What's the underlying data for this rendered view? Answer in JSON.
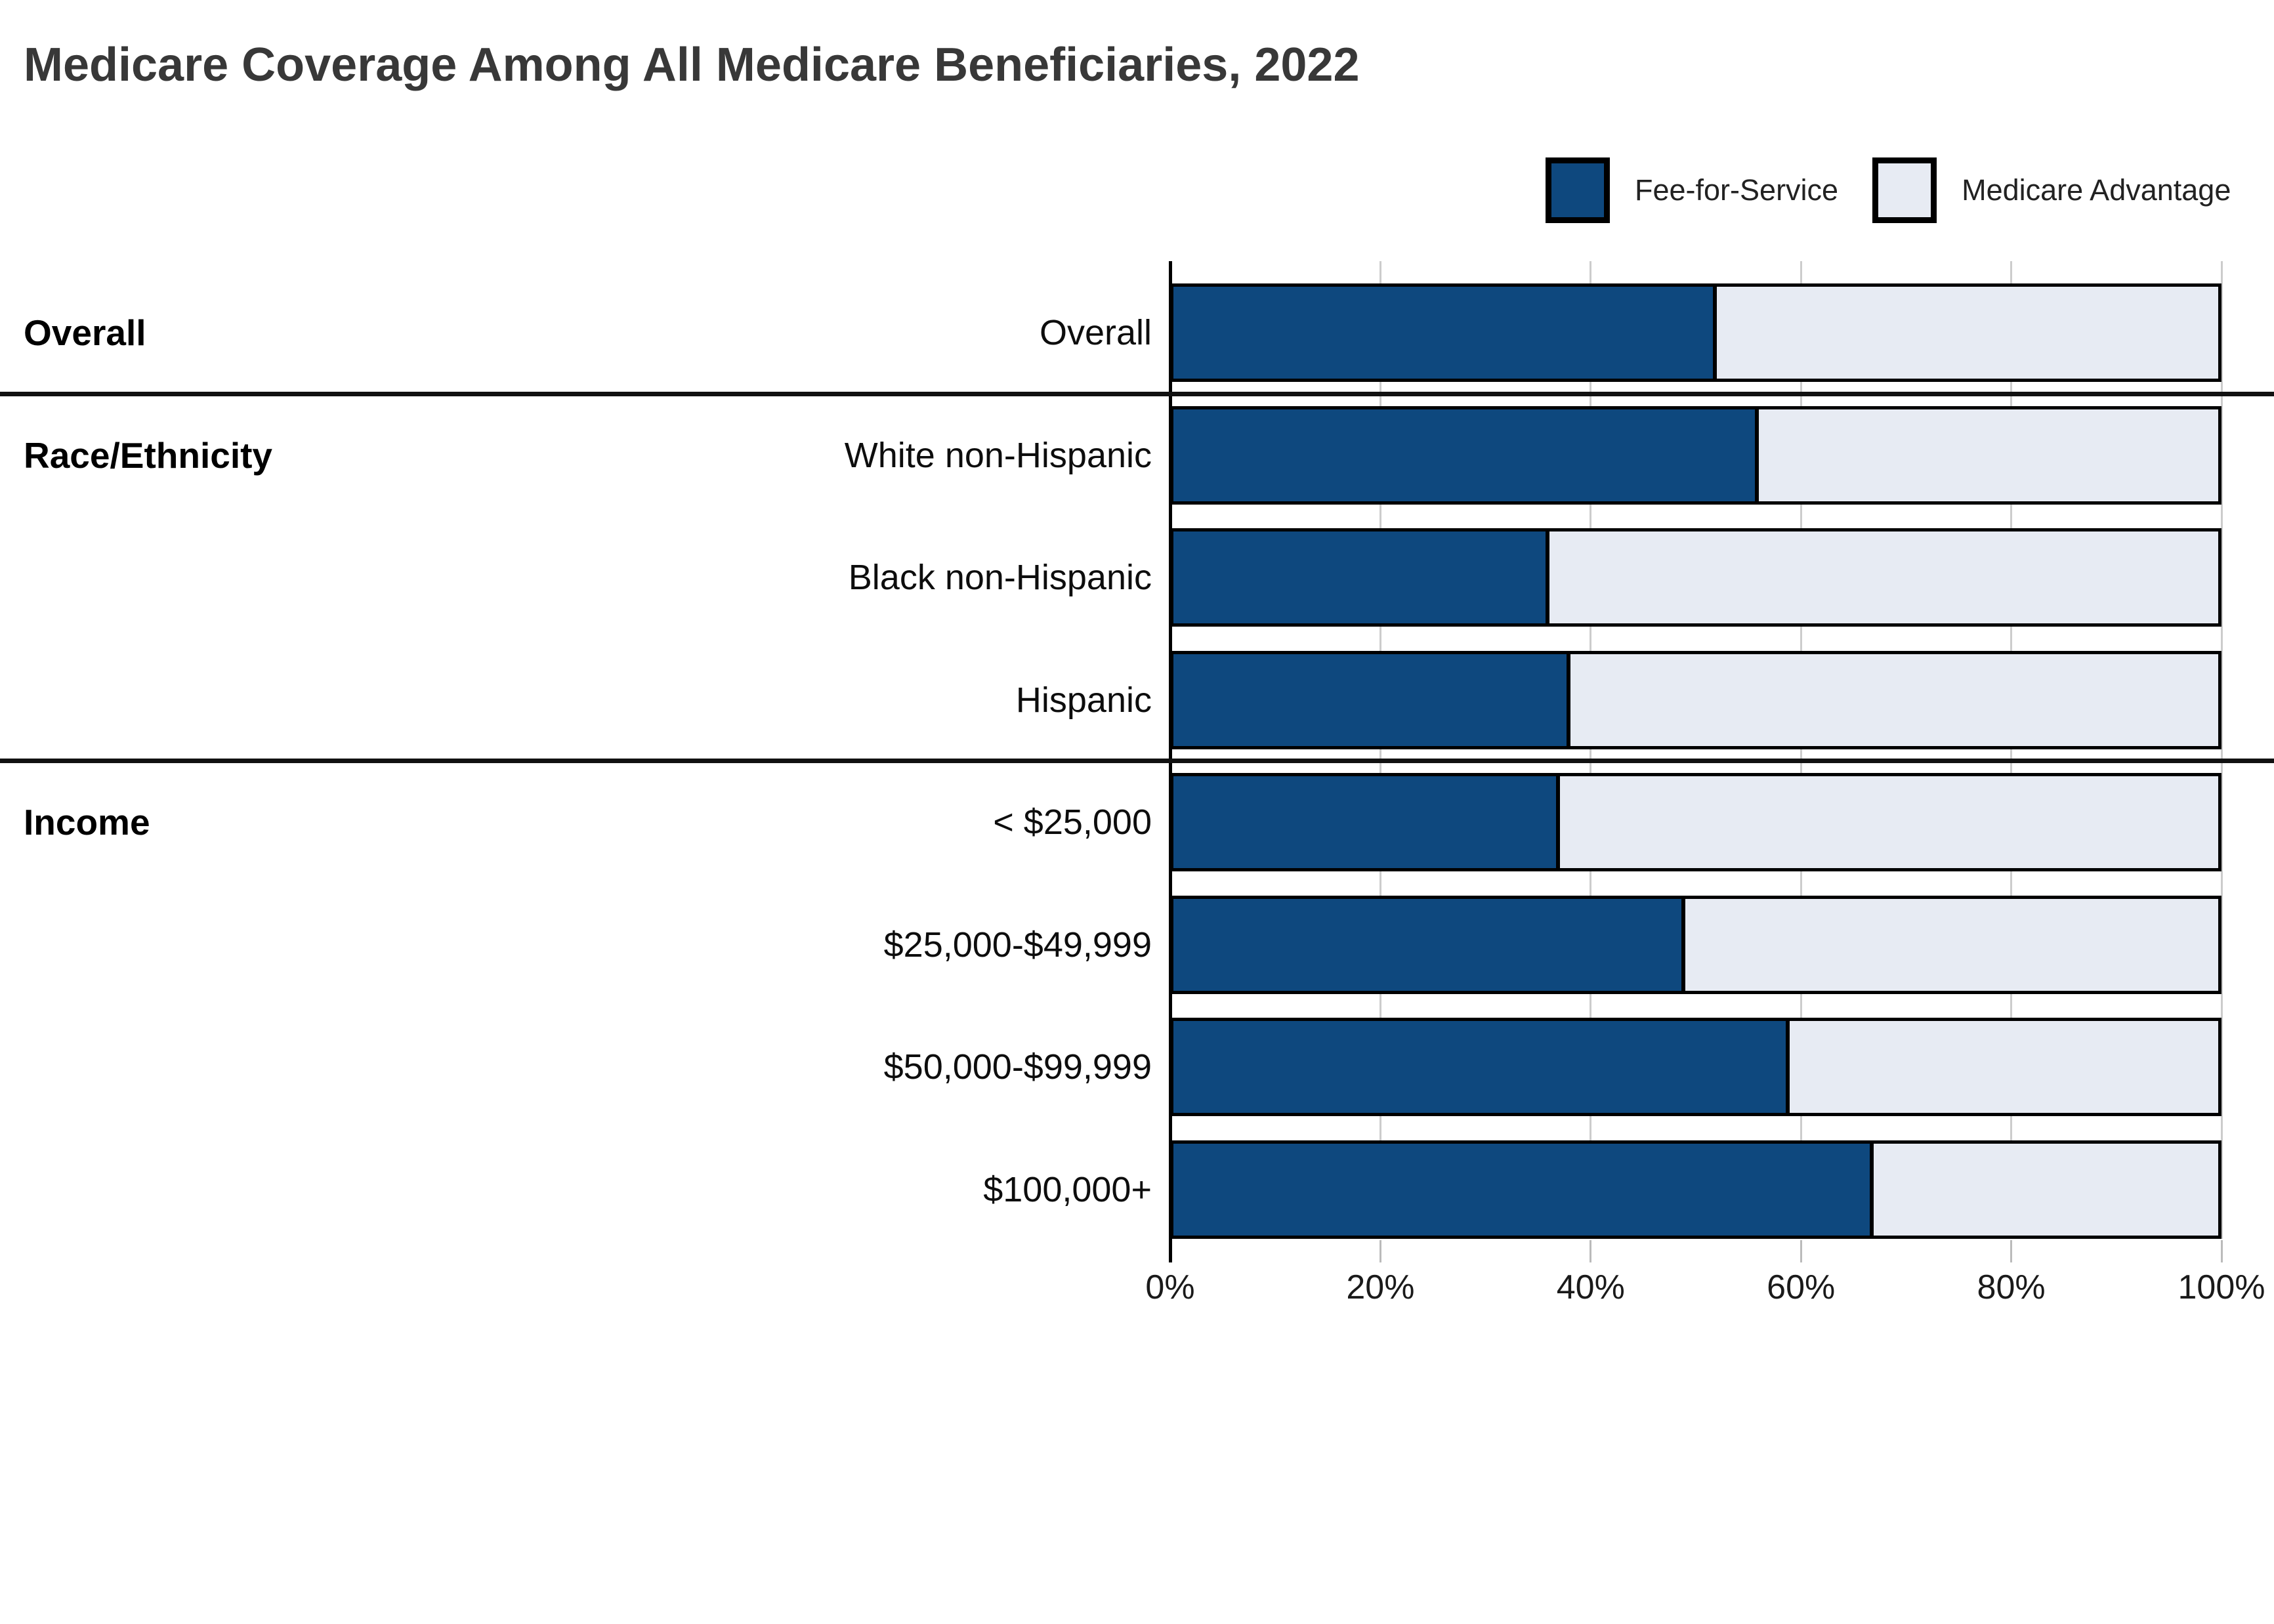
{
  "title": "Medicare Coverage Among All Medicare Beneficiaries, 2022",
  "legend": {
    "items": [
      {
        "label": "Fee-for-Service",
        "color": "#0E487E"
      },
      {
        "label": "Medicare Advantage",
        "color": "#E7EBF3"
      }
    ]
  },
  "chart_data": {
    "type": "bar",
    "orientation": "horizontal-stacked",
    "title": "Medicare Coverage Among All Medicare Beneficiaries, 2022",
    "unit": "%",
    "groups": [
      {
        "label": "Overall",
        "categories": [
          "Overall"
        ]
      },
      {
        "label": "Race/Ethnicity",
        "categories": [
          "White non-Hispanic",
          "Black non-Hispanic",
          "Hispanic"
        ]
      },
      {
        "label": "Income",
        "categories": [
          "< $25,000",
          "$25,000-$49,999",
          "$50,000-$99,999",
          "$100,000+"
        ]
      }
    ],
    "categories": [
      "Overall",
      "White non-Hispanic",
      "Black non-Hispanic",
      "Hispanic",
      "< $25,000",
      "$25,000-$49,999",
      "$50,000-$99,999",
      "$100,000+"
    ],
    "series": [
      {
        "name": "Fee-for-Service",
        "color": "#0E487E",
        "values": [
          52,
          56,
          36,
          38,
          37,
          49,
          59,
          67
        ]
      },
      {
        "name": "Medicare Advantage",
        "color": "#E7EBF3",
        "values": [
          48,
          44,
          64,
          62,
          63,
          51,
          41,
          33
        ]
      }
    ],
    "x_axis": {
      "min": 0,
      "max": 100,
      "tick_labels": [
        "0%",
        "20%",
        "40%",
        "60%",
        "80%",
        "100%"
      ],
      "grid": true
    },
    "legend_position": "top-right",
    "colors": {
      "bar_border": "#000000",
      "gridline": "#cccccc",
      "separator": "#111111",
      "title_text": "#383838"
    }
  }
}
